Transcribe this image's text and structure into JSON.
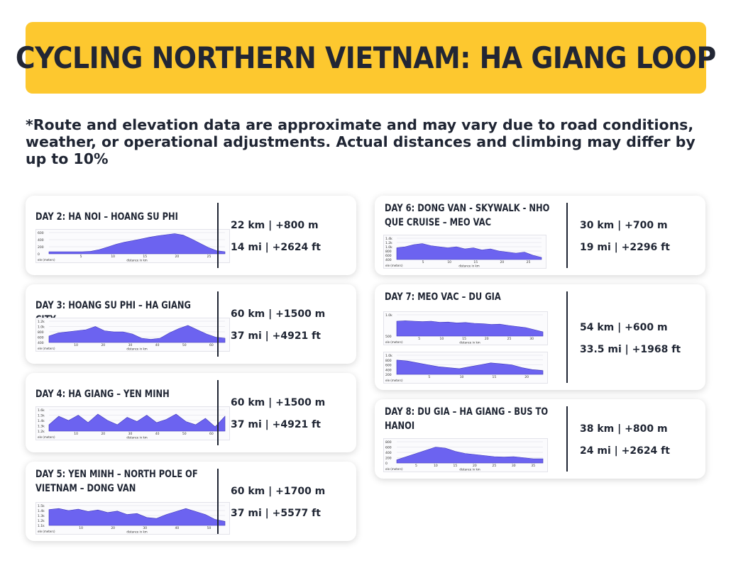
{
  "title": "CYCLING NORTHERN VIETNAM: HA GIANG LOOP",
  "disclaimer": "*Route and elevation data are approximate and may vary due to road conditions, weather, or operational adjustments. Actual distances and climbing may differ by up to 10%",
  "days": [
    {
      "title": "DAY 2: HA NOI – HOANG SU PHI",
      "metric": "22 km | +800 m",
      "imperial": "14 mi | +2624 ft",
      "profiles": [
        {
          "y_ticks": [
            "600",
            "400",
            "200",
            "0"
          ],
          "x_ticks": [
            "5",
            "10",
            "15",
            "20",
            "25"
          ],
          "y_label": "ele (meters)",
          "x_label": "distance in km"
        }
      ]
    },
    {
      "title": "DAY 3: HOANG SU PHI – HA GIANG CITY",
      "metric": "60 km | +1500 m",
      "imperial": "37 mi | +4921 ft",
      "profiles": [
        {
          "y_ticks": [
            "1.2k",
            "1.0k",
            "800",
            "600",
            "400"
          ],
          "x_ticks": [
            "10",
            "20",
            "30",
            "40",
            "50",
            "60"
          ],
          "y_label": "ele (meters)",
          "x_label": "distance in km"
        }
      ]
    },
    {
      "title": "DAY 4: HA GIANG – YEN MINH",
      "metric": "60 km | +1500 m",
      "imperial": "37 mi | +4921 ft",
      "profiles": [
        {
          "y_ticks": [
            "1.6k",
            "1.5k",
            "1.4k",
            "1.3k",
            "1.2k"
          ],
          "x_ticks": [
            "10",
            "20",
            "30",
            "40",
            "50",
            "60"
          ],
          "y_label": "ele (meters)",
          "x_label": "distance in km"
        }
      ]
    },
    {
      "title": "DAY 5: YEN MINH – NORTH POLE OF VIETNAM – DONG VAN",
      "metric": "60 km | +1700 m",
      "imperial": "37 mi | +5577 ft",
      "profiles": [
        {
          "y_ticks": [
            "1.5k",
            "1.4k",
            "1.3k",
            "1.2k",
            "1.1k"
          ],
          "x_ticks": [
            "10",
            "20",
            "30",
            "40",
            "50"
          ],
          "y_label": "ele (meters)",
          "x_label": "distance in km"
        }
      ]
    },
    {
      "title": "DAY 6: DONG VAN - SKYWALK - NHO QUE CRUISE – MEO VAC",
      "metric": "30 km | +700 m",
      "imperial": "19 mi | +2296 ft",
      "profiles": [
        {
          "y_ticks": [
            "1.4k",
            "1.2k",
            "1.0k",
            "800",
            "600",
            "400"
          ],
          "x_ticks": [
            "5",
            "10",
            "15",
            "20",
            "25"
          ],
          "y_label": "ele (meters)",
          "x_label": "distance in km"
        }
      ]
    },
    {
      "title": "DAY 7: MEO VAC – DU GIA",
      "metric": "54 km | +600 m",
      "imperial": "33.5 mi | +1968 ft",
      "profiles": [
        {
          "y_ticks": [
            "1.0k",
            "500"
          ],
          "x_ticks": [
            "5",
            "10",
            "15",
            "20",
            "25",
            "30"
          ],
          "y_label": "ele (meters)",
          "x_label": "distance in km"
        },
        {
          "y_ticks": [
            "1.0k",
            "800",
            "600",
            "400",
            "200"
          ],
          "x_ticks": [
            "5",
            "10",
            "15",
            "20"
          ],
          "y_label": "ele (meters)",
          "x_label": ""
        }
      ]
    },
    {
      "title": "DAY 8: DU GIA – HA GIANG - BUS TO HANOI",
      "metric": "38 km | +800 m",
      "imperial": "24 mi | +2624 ft",
      "profiles": [
        {
          "y_ticks": [
            "800",
            "600",
            "400",
            "200",
            "0"
          ],
          "x_ticks": [
            "5",
            "10",
            "15",
            "20",
            "25",
            "30",
            "35"
          ],
          "y_label": "ele (meters)",
          "x_label": "distance in km"
        }
      ]
    }
  ]
}
